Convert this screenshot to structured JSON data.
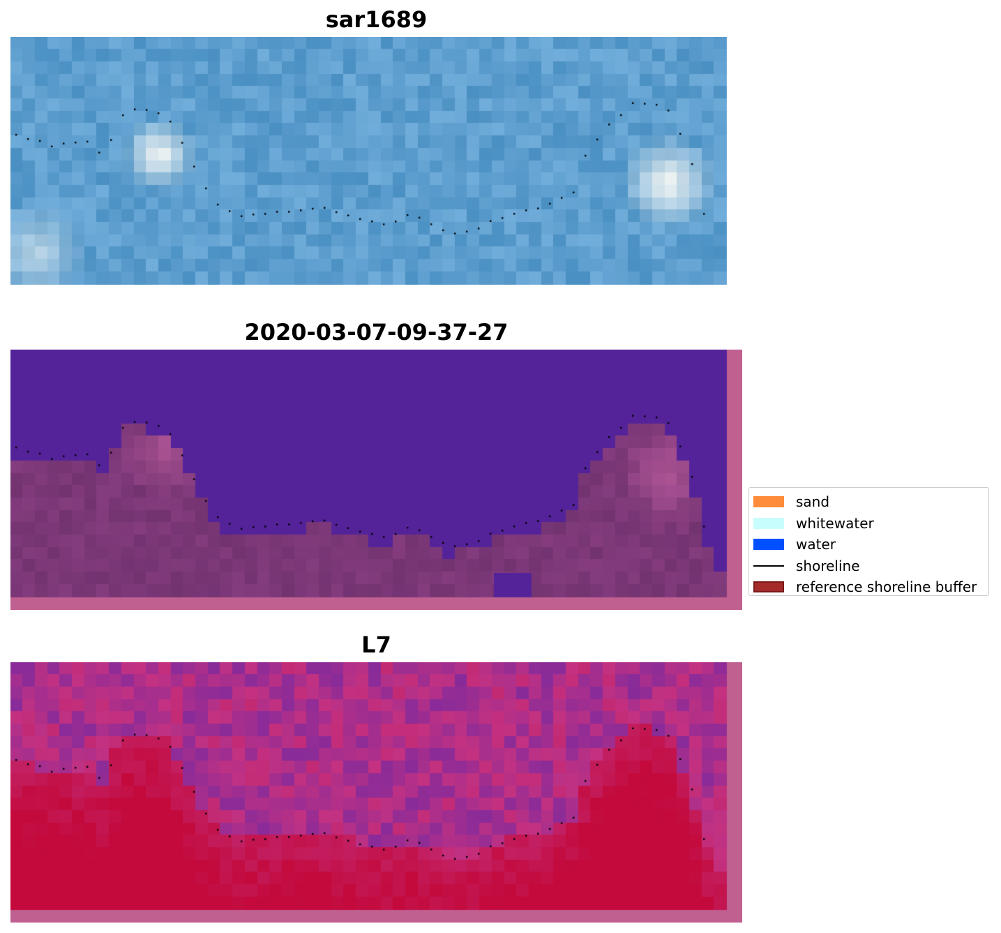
{
  "panels": [
    {
      "title": "sar1689",
      "kind": "rgb"
    },
    {
      "title": "2020-03-07-09-37-27",
      "kind": "classified"
    },
    {
      "title": "L7",
      "kind": "index"
    }
  ],
  "legend": {
    "items": [
      {
        "label": "sand",
        "color": "#ff8c3a",
        "type": "patch"
      },
      {
        "label": "whitewater",
        "color": "#c8fdfd",
        "type": "patch"
      },
      {
        "label": "water",
        "color": "#0050ff",
        "type": "patch"
      },
      {
        "label": "shoreline",
        "color": "#000000",
        "type": "line"
      },
      {
        "label": "reference shoreline buffer",
        "color": "#a52a2a",
        "type": "buffer"
      }
    ]
  },
  "colors": {
    "rgb_base": "#5e9fcf",
    "classified_water": "#54239a",
    "classified_land": "#7c3878",
    "buffer_overlay": "#c06090",
    "index_high": "#c40a3c",
    "index_low": "#7a2aa0",
    "shoreline_points": "#000000"
  }
}
